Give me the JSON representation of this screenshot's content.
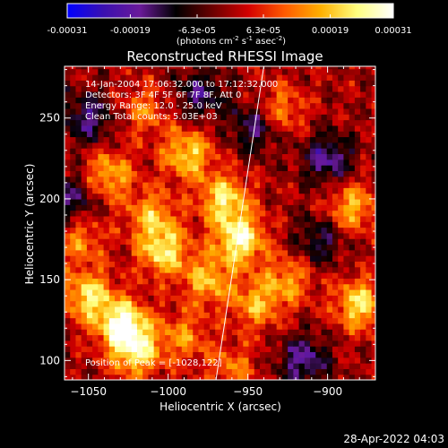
{
  "colorbar": {
    "tick_labels": [
      "-0.00031",
      "-0.00019",
      "-6.3e-05",
      "6.3e-05",
      "0.00019",
      "0.00031"
    ],
    "tick_values": [
      -0.00031,
      -0.00019,
      -6.3e-05,
      6.3e-05,
      0.00019,
      0.00031
    ],
    "range": [
      -0.00031,
      0.00031
    ],
    "units_text": "(photons cm",
    "units_exp1": "-2",
    "units_mid": " s",
    "units_exp2": "-1",
    "units_mid2": " asec",
    "units_exp3": "-2",
    "units_close": ")",
    "stops": [
      "#0000ff",
      "#3a10b0",
      "#6a1a9a",
      "#000000",
      "#6a0000",
      "#d40000",
      "#ff5a00",
      "#ffb000",
      "#ffff80",
      "#ffffff"
    ]
  },
  "chart_data": {
    "type": "heatmap",
    "title": "Reconstructed RHESSI Image",
    "xlabel": "Heliocentric X (arcsec)",
    "ylabel": "Heliocentric Y (arcsec)",
    "xlim": [
      -1065,
      -870
    ],
    "ylim": [
      88,
      282
    ],
    "x_ticks": [
      -1050,
      -1000,
      -950,
      -900
    ],
    "y_ticks": [
      100,
      150,
      200,
      250
    ],
    "peak": {
      "x": -1028,
      "y": 122
    },
    "peak_label": "Position of Peak = [-1028,122]",
    "limb_line": [
      {
        "x": -970,
        "y": 88
      },
      {
        "x": -940,
        "y": 282
      }
    ],
    "blobs": [
      {
        "x": -1028,
        "y": 122,
        "v": 1.0
      },
      {
        "x": -1050,
        "y": 140,
        "v": 0.75
      },
      {
        "x": -1020,
        "y": 105,
        "v": 0.7
      },
      {
        "x": -955,
        "y": 175,
        "v": 0.9
      },
      {
        "x": -965,
        "y": 200,
        "v": 0.75
      },
      {
        "x": -988,
        "y": 228,
        "v": 0.7
      },
      {
        "x": -1003,
        "y": 168,
        "v": 0.75
      },
      {
        "x": -1037,
        "y": 215,
        "v": 0.6
      },
      {
        "x": -1010,
        "y": 190,
        "v": 0.55
      },
      {
        "x": -975,
        "y": 150,
        "v": 0.6
      },
      {
        "x": -945,
        "y": 135,
        "v": 0.55
      },
      {
        "x": -925,
        "y": 150,
        "v": 0.5
      },
      {
        "x": -880,
        "y": 135,
        "v": 0.75
      },
      {
        "x": -885,
        "y": 195,
        "v": 0.6
      },
      {
        "x": -930,
        "y": 255,
        "v": 0.5
      },
      {
        "x": -990,
        "y": 115,
        "v": 0.45
      },
      {
        "x": -960,
        "y": 95,
        "v": 0.4
      },
      {
        "x": -1055,
        "y": 175,
        "v": 0.45
      },
      {
        "x": -1015,
        "y": 255,
        "v": 0.4
      },
      {
        "x": -900,
        "y": 225,
        "v": -0.6
      },
      {
        "x": -1050,
        "y": 250,
        "v": -0.55
      },
      {
        "x": -915,
        "y": 100,
        "v": -0.6
      },
      {
        "x": -1060,
        "y": 200,
        "v": -0.5
      },
      {
        "x": -945,
        "y": 245,
        "v": -0.55
      },
      {
        "x": -980,
        "y": 265,
        "v": -0.5
      },
      {
        "x": -905,
        "y": 175,
        "v": -0.45
      }
    ]
  },
  "info": {
    "line1": "14-Jan-2004 17:06:32.000 to 17:12:32.000",
    "line2": "Detectors: 3F 4F 5F 6F 7F 8F, Att 0",
    "line3": "Energy Range: 12.0 - 25.0 keV",
    "line4": "Clean     Total counts: 5.03E+03"
  },
  "timestamp": "28-Apr-2022 04:03"
}
